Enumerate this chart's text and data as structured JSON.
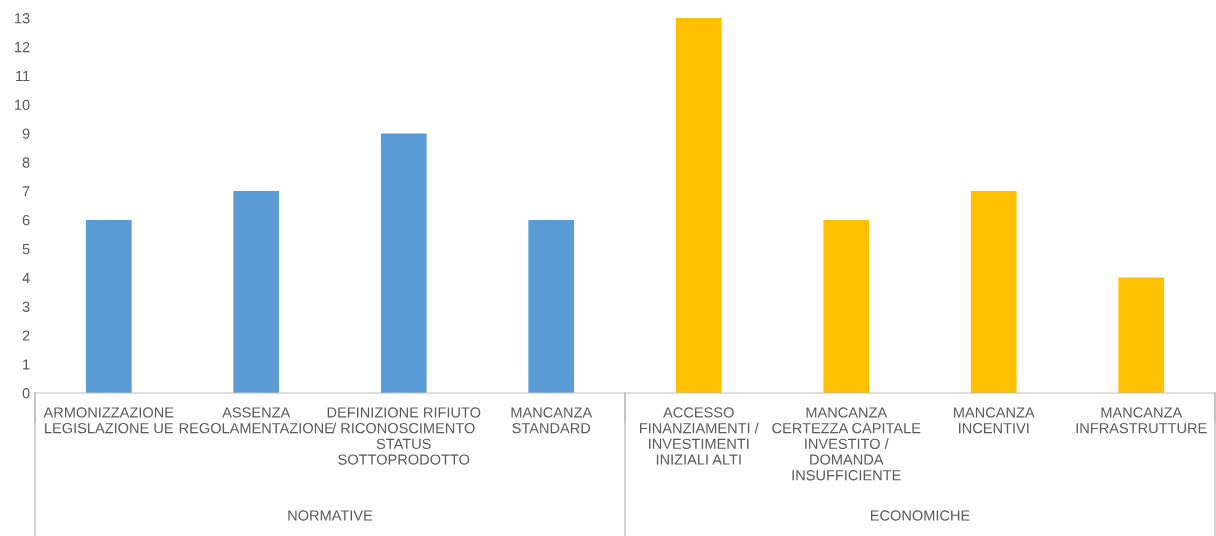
{
  "chart_data": {
    "type": "bar",
    "categories": [
      "ARMONIZZAZIONE\nLEGISLAZIONE UE",
      "ASSENZA\nREGOLAMENTAZIONE",
      "DEFINIZIONE RIFIUTO\n/ RICONOSCIMENTO\nSTATUS\nSOTTOPRODOTTO",
      "MANCANZA\nSTANDARD",
      "ACCESSO\nFINANZIAMENTI /\nINVESTIMENTI\nINIZIALI ALTI",
      "MANCANZA\nCERTEZZA CAPITALE\nINVESTITO /\nDOMANDA\nINSUFFICIENTE",
      "MANCANZA\nINCENTIVI",
      "MANCANZA\nINFRASTRUTTURE"
    ],
    "values": [
      6,
      7,
      9,
      6,
      13,
      6,
      7,
      4
    ],
    "colors": [
      "#5b9bd5",
      "#5b9bd5",
      "#5b9bd5",
      "#5b9bd5",
      "#ffc000",
      "#ffc000",
      "#ffc000",
      "#ffc000"
    ],
    "ylim": [
      0,
      13
    ],
    "yticks": [
      0,
      1,
      2,
      3,
      4,
      5,
      6,
      7,
      8,
      9,
      10,
      11,
      12,
      13
    ],
    "annotations": [
      "NORMATIVE",
      "ECONOMICHE"
    ],
    "grid": false,
    "legend": false
  }
}
